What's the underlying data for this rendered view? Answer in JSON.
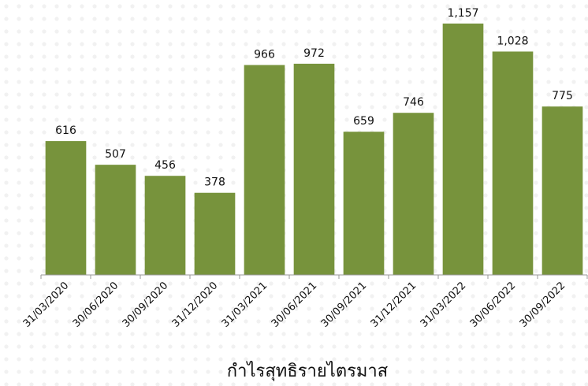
{
  "chart_data": {
    "type": "bar",
    "x_label": "กำไรสุทธิรายไตรมาส",
    "categories": [
      "31/03/2020",
      "30/06/2020",
      "30/09/2020",
      "31/12/2020",
      "31/03/2021",
      "30/06/2021",
      "30/09/2021",
      "31/12/2021",
      "31/03/2022",
      "30/06/2022",
      "30/09/2022"
    ],
    "values": [
      616,
      507,
      456,
      378,
      966,
      972,
      659,
      746,
      1157,
      1028,
      775
    ],
    "value_labels": [
      "616",
      "507",
      "456",
      "378",
      "966",
      "972",
      "659",
      "746",
      "1,157",
      "1,028",
      "775"
    ],
    "color": "#77933c",
    "ylim": [
      0,
      1200
    ]
  }
}
